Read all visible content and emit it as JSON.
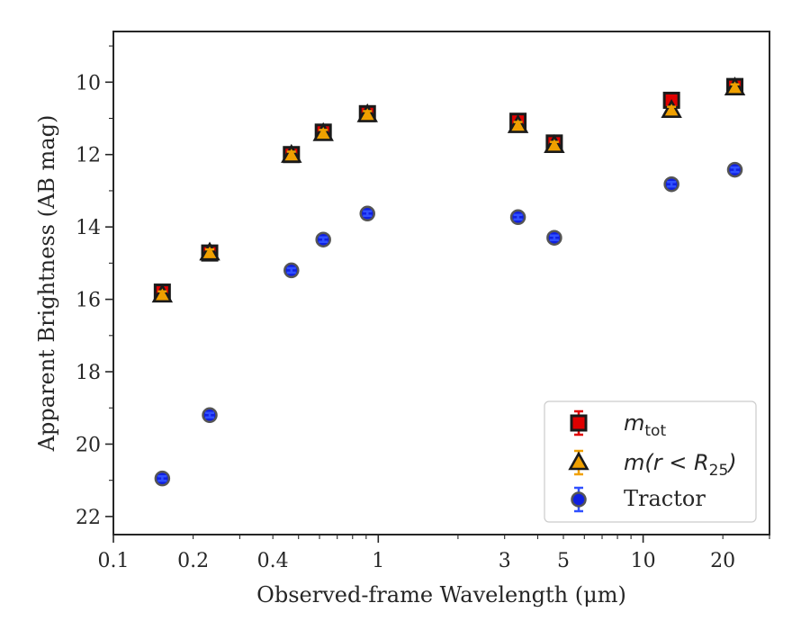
{
  "chart_data": {
    "type": "scatter",
    "xlabel": "Observed-frame Wavelength (μm)",
    "ylabel": "Apparent Brightness (AB mag)",
    "xscale": "log",
    "xlim": [
      0.1,
      30
    ],
    "ylim": [
      22.5,
      8.6
    ],
    "y_inverted": true,
    "x_ticks": [
      0.1,
      0.2,
      0.4,
      1,
      3,
      5,
      10,
      20
    ],
    "x_tick_labels": [
      "0.1",
      "0.2",
      "0.4",
      "1",
      "3",
      "5",
      "10",
      "20"
    ],
    "y_ticks": [
      10,
      12,
      14,
      16,
      18,
      20,
      22
    ],
    "y_tick_labels": [
      "10",
      "12",
      "14",
      "16",
      "18",
      "20",
      "22"
    ],
    "grid": false,
    "legend_position": "lower-right",
    "series": [
      {
        "legend_main": "m",
        "legend_sub": "tot",
        "marker": "square",
        "color": "#e00000",
        "edge_color": "#1a1a1a",
        "errorbar_color": "#e00000",
        "x": [
          0.153,
          0.231,
          0.47,
          0.62,
          0.91,
          3.37,
          4.62,
          12.8,
          22.2
        ],
        "y": [
          15.8,
          14.72,
          12.0,
          11.38,
          10.87,
          11.08,
          11.68,
          10.5,
          10.12
        ]
      },
      {
        "legend_main": "m(r < R",
        "legend_sub": "25",
        "legend_suffix": ")",
        "marker": "triangle",
        "color": "#f0a000",
        "edge_color": "#1a1a1a",
        "errorbar_color": "#f0a000",
        "x": [
          0.153,
          0.231,
          0.47,
          0.62,
          0.91,
          3.37,
          4.62,
          12.8,
          22.2
        ],
        "y": [
          15.88,
          14.72,
          12.02,
          11.42,
          10.9,
          11.2,
          11.75,
          10.78,
          10.16
        ]
      },
      {
        "name": "Tractor",
        "marker": "circle",
        "color": "#1020e0",
        "edge_color": "#555555",
        "errorbar_color": "#3050ff",
        "x": [
          0.153,
          0.231,
          0.47,
          0.62,
          0.91,
          3.37,
          4.62,
          12.8,
          22.2
        ],
        "y": [
          20.95,
          19.2,
          15.2,
          14.35,
          13.63,
          13.73,
          14.3,
          12.82,
          12.42
        ]
      }
    ]
  }
}
